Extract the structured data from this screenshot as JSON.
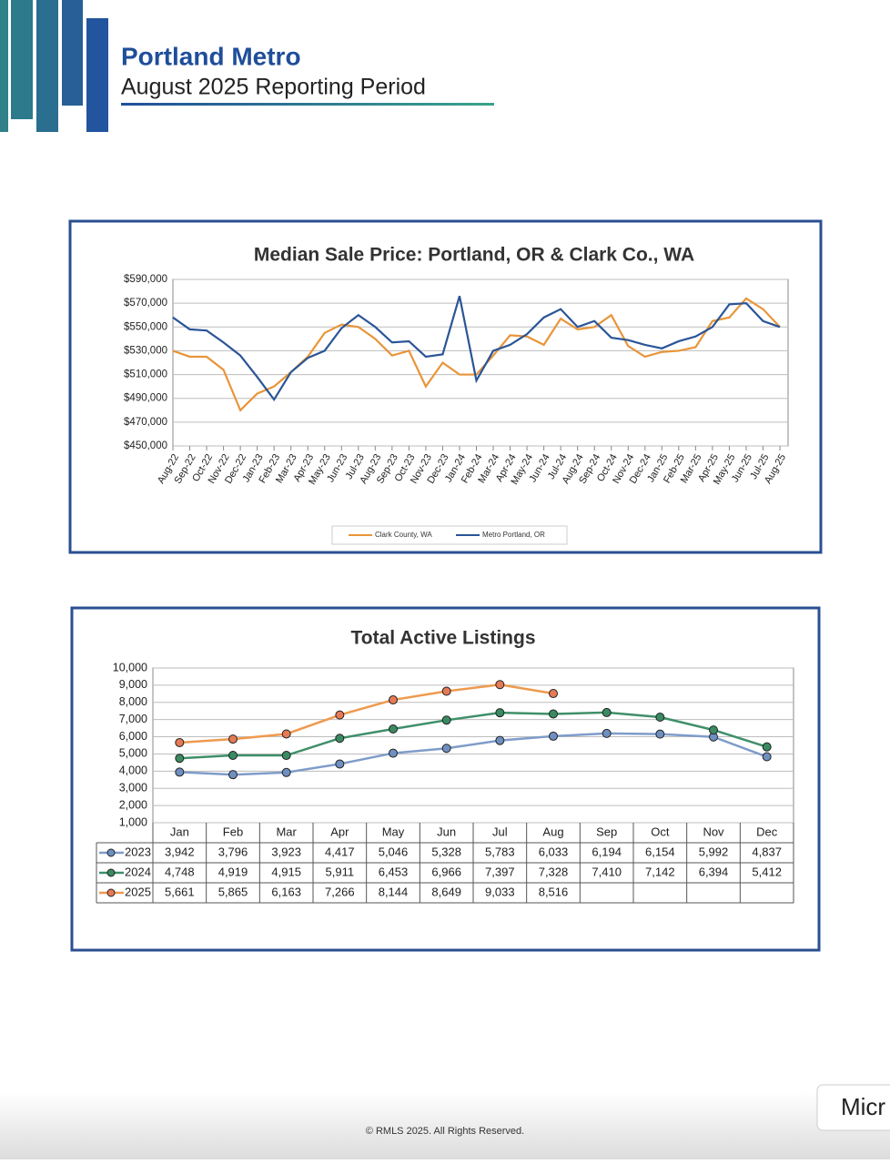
{
  "header": {
    "title": "Portland Metro",
    "subtitle": "August 2025 Reporting Period"
  },
  "chart_data": [
    {
      "type": "line",
      "title": "Median Sale Price: Portland, OR & Clark Co., WA",
      "categories": [
        "Aug-22",
        "Sep-22",
        "Oct-22",
        "Nov-22",
        "Dec-22",
        "Jan-23",
        "Feb-23",
        "Mar-23",
        "Apr-23",
        "May-23",
        "Jun-23",
        "Jul-23",
        "Aug-23",
        "Sep-23",
        "Oct-23",
        "Nov-23",
        "Dec-23",
        "Jan-24",
        "Feb-24",
        "Mar-24",
        "Apr-24",
        "May-24",
        "Jun-24",
        "Jul-24",
        "Aug-24",
        "Sep-24",
        "Oct-24",
        "Nov-24",
        "Dec-24",
        "Jan-25",
        "Feb-25",
        "Mar-25",
        "Apr-25",
        "May-25",
        "Jun-25",
        "Jul-25",
        "Aug-25"
      ],
      "series": [
        {
          "name": "Clark County, WA",
          "color": "#e8953a",
          "values": [
            530000,
            525000,
            525000,
            514000,
            480000,
            494000,
            500000,
            512000,
            525000,
            545000,
            552000,
            550000,
            540000,
            526000,
            530000,
            500000,
            520000,
            510000,
            510000,
            526000,
            543000,
            542000,
            535000,
            557000,
            548000,
            550000,
            560000,
            534000,
            525000,
            529000,
            530000,
            533000,
            555000,
            558000,
            574000,
            565000,
            550000
          ]
        },
        {
          "name": "Metro Portland, OR",
          "color": "#2a5597",
          "values": [
            558000,
            548000,
            547000,
            537000,
            526000,
            508000,
            489000,
            512000,
            524000,
            530000,
            549000,
            560000,
            550000,
            537000,
            538000,
            525000,
            527000,
            576000,
            505000,
            530000,
            535000,
            544000,
            558000,
            565000,
            550000,
            555000,
            541000,
            539000,
            535000,
            532000,
            538000,
            542000,
            550000,
            569000,
            570000,
            555000,
            550000
          ]
        }
      ],
      "ylim": [
        450000,
        590000
      ],
      "yticks": [
        {
          "value": 450000,
          "label": "$450,000"
        },
        {
          "value": 470000,
          "label": "$470,000"
        },
        {
          "value": 490000,
          "label": "$490,000"
        },
        {
          "value": 510000,
          "label": "$510,000"
        },
        {
          "value": 530000,
          "label": "$530,000"
        },
        {
          "value": 550000,
          "label": "$550,000"
        },
        {
          "value": 570000,
          "label": "$570,000"
        },
        {
          "value": 590000,
          "label": "$590,000"
        }
      ],
      "grid": true,
      "legend": "bottom",
      "markers": false,
      "data_table": false
    },
    {
      "type": "line",
      "title": "Total Active Listings",
      "categories": [
        "Jan",
        "Feb",
        "Mar",
        "Apr",
        "May",
        "Jun",
        "Jul",
        "Aug",
        "Sep",
        "Oct",
        "Nov",
        "Dec"
      ],
      "series": [
        {
          "name": "2023",
          "color": "#7f9cc9",
          "marker_color": "#6f8fc0",
          "values": [
            3942,
            3796,
            3923,
            4417,
            5046,
            5328,
            5783,
            6033,
            6194,
            6154,
            5992,
            4837
          ],
          "value_labels": [
            "3,942",
            "3,796",
            "3,923",
            "4,417",
            "5,046",
            "5,328",
            "5,783",
            "6,033",
            "6,194",
            "6,154",
            "5,992",
            "4,837"
          ]
        },
        {
          "name": "2024",
          "color": "#3f8f6a",
          "marker_color": "#3a8a62",
          "values": [
            4748,
            4919,
            4915,
            5911,
            6453,
            6966,
            7397,
            7328,
            7410,
            7142,
            6394,
            5412
          ],
          "value_labels": [
            "4,748",
            "4,919",
            "4,915",
            "5,911",
            "6,453",
            "6,966",
            "7,397",
            "7,328",
            "7,410",
            "7,142",
            "6,394",
            "5,412"
          ]
        },
        {
          "name": "2025",
          "color": "#ee9a4e",
          "marker_color": "#e57a55",
          "values": [
            5661,
            5865,
            6163,
            7266,
            8144,
            8649,
            9033,
            8516,
            null,
            null,
            null,
            null
          ],
          "value_labels": [
            "5,661",
            "5,865",
            "6,163",
            "7,266",
            "8,144",
            "8,649",
            "9,033",
            "8,516",
            null,
            null,
            null,
            null
          ]
        }
      ],
      "ylim": [
        1000,
        10000
      ],
      "yticks": [
        {
          "value": 1000,
          "label": "1,000"
        },
        {
          "value": 2000,
          "label": "2,000"
        },
        {
          "value": 3000,
          "label": "3,000"
        },
        {
          "value": 4000,
          "label": "4,000"
        },
        {
          "value": 5000,
          "label": "5,000"
        },
        {
          "value": 6000,
          "label": "6,000"
        },
        {
          "value": 7000,
          "label": "7,000"
        },
        {
          "value": 8000,
          "label": "8,000"
        },
        {
          "value": 9000,
          "label": "9,000"
        },
        {
          "value": 10000,
          "label": "10,000"
        }
      ],
      "grid": true,
      "legend": "table",
      "markers": true,
      "data_table": true
    }
  ],
  "footer": "© RMLS 2025. All Rights Reserved.",
  "overlay_button": "Micr"
}
